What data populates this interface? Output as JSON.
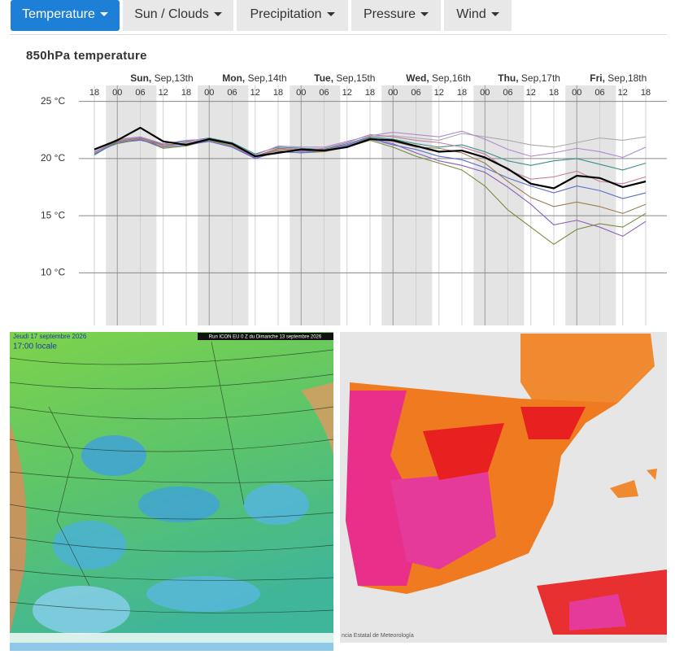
{
  "tabs": [
    "Temperature",
    "Sun / Clouds",
    "Precipitation",
    "Pressure",
    "Wind"
  ],
  "chart_data": {
    "type": "line",
    "title": "850hPa temperature",
    "days": [
      {
        "day": "Sun,",
        "date": "Sep,13th"
      },
      {
        "day": "Mon,",
        "date": "Sep,14th"
      },
      {
        "day": "Tue,",
        "date": "Sep,15th"
      },
      {
        "day": "Wed,",
        "date": "Sep,16th"
      },
      {
        "day": "Thu,",
        "date": "Sep,17th"
      },
      {
        "day": "Fri,",
        "date": "Sep,18th"
      }
    ],
    "categories": [
      "18",
      "00",
      "06",
      "12",
      "18",
      "00",
      "06",
      "12",
      "18",
      "00",
      "06",
      "12",
      "18",
      "00",
      "06",
      "12",
      "18",
      "00",
      "06",
      "12",
      "18",
      "00",
      "06",
      "12",
      "18"
    ],
    "ylim": [
      5.4,
      26.4
    ],
    "yticks": [
      {
        "value": 25,
        "label": "25 °C"
      },
      {
        "value": 20,
        "label": "20 °C"
      },
      {
        "value": 15,
        "label": "15 °C"
      },
      {
        "value": 10,
        "label": "10 °C"
      }
    ],
    "grid": true,
    "series": [
      {
        "color": "#aaaaaa",
        "values": [
          20.5,
          21.5,
          21.8,
          21.0,
          21.4,
          21.6,
          21.2,
          20.0,
          20.8,
          20.7,
          20.6,
          21.1,
          21.9,
          22.0,
          21.8,
          21.6,
          22.2,
          21.9,
          21.6,
          21.2,
          21.0,
          21.4,
          21.8,
          21.6,
          21.9
        ]
      },
      {
        "color": "#8a5fb5",
        "values": [
          20.4,
          21.4,
          21.6,
          21.2,
          21.3,
          21.5,
          21.0,
          20.1,
          20.9,
          20.6,
          20.8,
          21.2,
          21.8,
          21.3,
          20.5,
          19.8,
          19.4,
          18.8,
          17.5,
          16.0,
          14.2,
          14.6,
          14.0,
          13.2,
          14.5
        ]
      },
      {
        "color": "#7a8a3a",
        "values": [
          20.6,
          21.3,
          21.7,
          20.9,
          21.1,
          21.6,
          21.1,
          20.2,
          20.7,
          20.5,
          20.6,
          21.0,
          21.6,
          21.0,
          20.2,
          19.6,
          19.0,
          17.6,
          15.5,
          14.0,
          12.5,
          13.8,
          14.3,
          14.0,
          15.2
        ]
      },
      {
        "color": "#3a8f8a",
        "values": [
          20.3,
          21.5,
          21.8,
          21.3,
          21.5,
          21.8,
          21.4,
          20.4,
          21.0,
          20.9,
          20.8,
          21.3,
          21.9,
          21.7,
          21.3,
          21.0,
          21.2,
          20.6,
          19.8,
          19.4,
          19.8,
          20.0,
          19.5,
          19.0,
          19.6
        ]
      },
      {
        "color": "#c77aa0",
        "values": [
          20.5,
          21.6,
          21.9,
          21.1,
          21.4,
          21.7,
          21.2,
          20.1,
          20.8,
          20.7,
          20.9,
          21.4,
          22.1,
          21.9,
          21.6,
          21.4,
          21.0,
          20.4,
          19.0,
          18.2,
          18.4,
          18.9,
          18.0,
          17.8,
          18.4
        ]
      },
      {
        "color": "#5a6fc9",
        "values": [
          20.4,
          21.4,
          21.7,
          21.0,
          21.2,
          21.5,
          21.0,
          20.0,
          20.6,
          20.5,
          20.7,
          21.1,
          21.7,
          21.2,
          20.8,
          20.2,
          19.9,
          19.2,
          18.3,
          17.6,
          17.0,
          17.6,
          17.2,
          16.5,
          17.0
        ]
      },
      {
        "color": "#a07a50",
        "values": [
          20.6,
          21.5,
          21.8,
          21.2,
          21.3,
          21.6,
          21.3,
          20.2,
          20.9,
          20.8,
          20.6,
          21.0,
          21.8,
          21.5,
          21.0,
          20.9,
          20.5,
          19.6,
          18.0,
          16.6,
          15.8,
          16.2,
          15.8,
          15.2,
          16.0
        ]
      },
      {
        "color": "#b08ad0",
        "values": [
          20.5,
          21.7,
          21.9,
          21.3,
          21.6,
          21.7,
          21.3,
          20.3,
          21.1,
          21.0,
          21.0,
          21.5,
          22.0,
          22.3,
          22.1,
          21.9,
          22.4,
          21.7,
          20.8,
          20.2,
          20.5,
          20.9,
          20.6,
          20.1,
          21.0
        ]
      },
      {
        "color": "#000000",
        "values": [
          20.8,
          21.6,
          22.7,
          21.5,
          21.2,
          21.7,
          21.3,
          20.2,
          20.5,
          20.8,
          20.7,
          21.0,
          21.7,
          21.6,
          21.1,
          20.6,
          20.7,
          20.1,
          19.1,
          17.8,
          17.4,
          18.5,
          18.3,
          17.5,
          18.0
        ]
      }
    ]
  },
  "maps": {
    "left": {
      "date": "Jeudi 17 septembre 2026",
      "time": "17:00 locale",
      "run": "Run ICON EU 0 Z du Dimanche 13 septembre 2026"
    },
    "right": {
      "credit": "ncia Estatal de Meteorología"
    }
  }
}
